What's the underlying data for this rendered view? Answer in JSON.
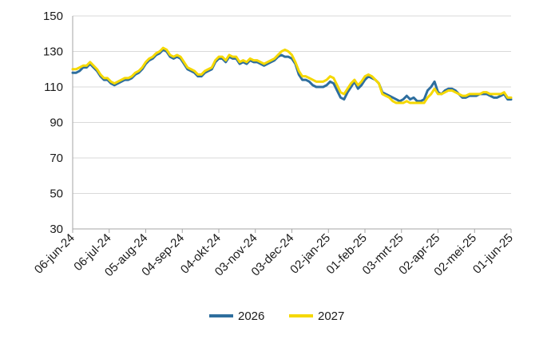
{
  "chart_data": {
    "type": "line",
    "title": "",
    "xlabel": "",
    "ylabel": "",
    "ylim": [
      30,
      150
    ],
    "yticks": [
      30,
      50,
      70,
      90,
      110,
      130,
      150
    ],
    "xticks": [
      "06-jun-24",
      "06-jul-24",
      "05-aug-24",
      "04-sep-24",
      "04-okt-24",
      "03-nov-24",
      "03-dec-24",
      "02-jan-25",
      "01-feb-25",
      "03-mrt-25",
      "02-apr-25",
      "02-mei-25",
      "01-jun-25"
    ],
    "grid": "horizontal",
    "legend_position": "bottom",
    "series": [
      {
        "name": "2026",
        "color": "#2e6e9e",
        "values": [
          118,
          118,
          119,
          121,
          121,
          123,
          121,
          119,
          116,
          114,
          114,
          112,
          111,
          112,
          113,
          114,
          114,
          115,
          117,
          118,
          120,
          123,
          125,
          126,
          128,
          129,
          131,
          130,
          127,
          126,
          127,
          126,
          123,
          120,
          119,
          118,
          116,
          116,
          118,
          119,
          120,
          124,
          126,
          126,
          124,
          127,
          126,
          126,
          123,
          124,
          123,
          125,
          124,
          124,
          123,
          122,
          123,
          124,
          125,
          127,
          128,
          127,
          127,
          126,
          123,
          117,
          114,
          114,
          113,
          111,
          110,
          110,
          110,
          111,
          113,
          112,
          108,
          104,
          103,
          107,
          110,
          113,
          109,
          111,
          114,
          116,
          115,
          114,
          112,
          107,
          106,
          105,
          104,
          103,
          102,
          103,
          105,
          103,
          104,
          102,
          102,
          103,
          108,
          110,
          113,
          107,
          106,
          108,
          109,
          109,
          108,
          106,
          104,
          104,
          105,
          105,
          105,
          106,
          106,
          106,
          105,
          104,
          104,
          105,
          106,
          103,
          103
        ]
      },
      {
        "name": "2027",
        "color": "#f5d800",
        "values": [
          120,
          120,
          121,
          122,
          122,
          124,
          122,
          120,
          117,
          115,
          115,
          113,
          112,
          113,
          114,
          115,
          115,
          116,
          118,
          119,
          121,
          124,
          126,
          127,
          129,
          130,
          132,
          131,
          128,
          127,
          128,
          127,
          124,
          121,
          120,
          119,
          117,
          117,
          119,
          120,
          121,
          125,
          127,
          127,
          125,
          128,
          127,
          127,
          124,
          125,
          124,
          126,
          125,
          125,
          124,
          123,
          124,
          125,
          126,
          128,
          130,
          131,
          130,
          128,
          124,
          119,
          116,
          116,
          115,
          114,
          113,
          113,
          113,
          114,
          116,
          115,
          111,
          107,
          106,
          109,
          112,
          114,
          111,
          113,
          116,
          117,
          116,
          114,
          112,
          106,
          105,
          104,
          102,
          101,
          101,
          101,
          102,
          101,
          101,
          101,
          101,
          101,
          104,
          106,
          109,
          106,
          106,
          107,
          108,
          108,
          107,
          106,
          105,
          105,
          106,
          106,
          106,
          106,
          107,
          107,
          106,
          106,
          106,
          106,
          107,
          104,
          104
        ]
      }
    ]
  }
}
